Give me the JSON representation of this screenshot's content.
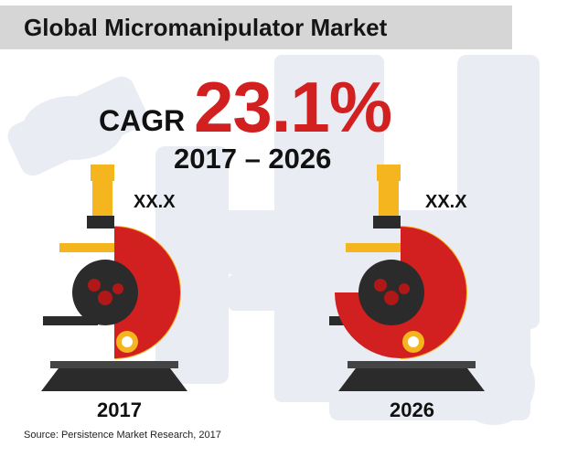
{
  "title": "Global Micromanipulator Market",
  "cagr": {
    "label": "CAGR",
    "value": "23.1%",
    "period": "2017 – 2026"
  },
  "source": "Source: Persistence Market Research, 2017",
  "colors": {
    "red": "#d21f1f",
    "dark_red": "#b01818",
    "yellow": "#f5b51f",
    "dark": "#2b2b2b",
    "title_bar": "#d6d6d6"
  },
  "chart_data": {
    "type": "pie",
    "categories": [
      "2017",
      "2026"
    ],
    "value_labels": [
      "XX.X",
      "XX.X"
    ],
    "filled_fraction": [
      0.5,
      0.75
    ]
  }
}
